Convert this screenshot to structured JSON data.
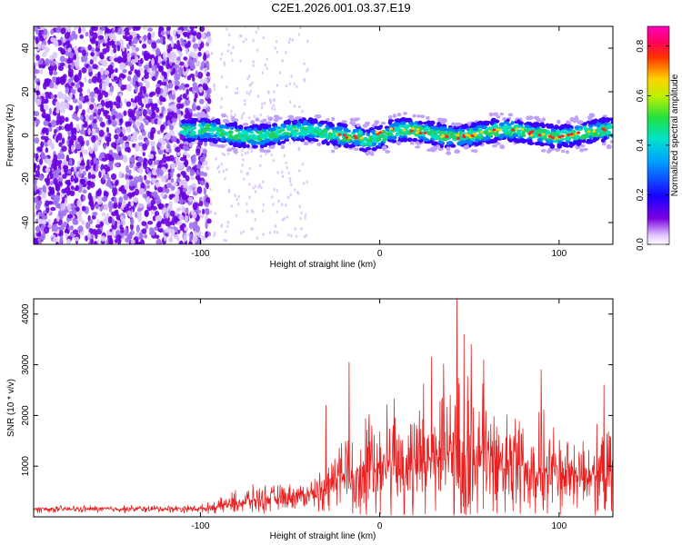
{
  "title": "C2E1.2026.001.03.37.E19",
  "chart_data": [
    {
      "type": "heatmap",
      "name": "spectrogram",
      "xlabel": "Height of straight line (km)",
      "ylabel": "Frequency (Hz)",
      "xlim": [
        -193,
        130
      ],
      "ylim": [
        -50,
        50
      ],
      "xticks": [
        -100,
        0,
        100
      ],
      "xtick_labels": [
        "-100",
        "0",
        "100"
      ],
      "yticks": [
        -40,
        -20,
        0,
        20,
        40
      ],
      "ytick_labels": [
        "-40",
        "-20",
        "0",
        "20",
        "40"
      ],
      "colorbar": {
        "label": "Normalized spectral amplitude",
        "range": [
          0,
          0.88
        ],
        "ticks": [
          0,
          0.2,
          0.4,
          0.6,
          0.8
        ],
        "tick_labels": [
          "0.0",
          "0.2",
          "0.4",
          "0.6",
          "0.8"
        ]
      },
      "features": {
        "noise_region_x": [
          -193,
          -95
        ],
        "sparse_noise_x": [
          -95,
          -40
        ],
        "signal_band_x": [
          -110,
          130
        ],
        "signal_band_center_hz": 1,
        "signal_band_halfwidth_hz": 5
      },
      "colors": {
        "background": "#ffffff",
        "noise": "#7a00e0",
        "band_edge": "#3a00ff",
        "band_core": "#00e0c0",
        "peak": "#ff2020"
      }
    },
    {
      "type": "line",
      "name": "snr",
      "xlabel": "Height of straight line (km)",
      "ylabel": "SNR (10 * v/v)",
      "xlim": [
        -193,
        130
      ],
      "ylim": [
        0,
        4300
      ],
      "xticks": [
        -100,
        0,
        100
      ],
      "xtick_labels": [
        "-100",
        "0",
        "100"
      ],
      "yticks": [
        1000,
        2000,
        3000,
        4000
      ],
      "ytick_labels": [
        "1000",
        "2000",
        "3000",
        "4000"
      ],
      "envelope": {
        "x": [
          -193,
          -100,
          -90,
          -80,
          -70,
          -60,
          -50,
          -40,
          -30,
          -25,
          -20,
          -10,
          0,
          10,
          20,
          30,
          40,
          50,
          60,
          70,
          80,
          90,
          100,
          110,
          120,
          130
        ],
        "base": [
          150,
          160,
          200,
          280,
          330,
          360,
          400,
          430,
          550,
          800,
          850,
          950,
          1000,
          1050,
          1100,
          1150,
          1200,
          1150,
          1100,
          1050,
          1000,
          950,
          900,
          850,
          850,
          850
        ],
        "amp": [
          80,
          90,
          160,
          300,
          330,
          320,
          300,
          320,
          600,
          900,
          1100,
          1200,
          1500,
          1600,
          1800,
          1900,
          2000,
          1900,
          1700,
          1500,
          1300,
          1200,
          1100,
          1000,
          1000,
          1000
        ]
      },
      "spikes": [
        [
          43,
          4300
        ],
        [
          -17,
          3050
        ],
        [
          47,
          3600
        ],
        [
          51,
          3400
        ],
        [
          29,
          3150
        ],
        [
          -30,
          2200
        ],
        [
          90,
          2900
        ],
        [
          58,
          3100
        ],
        [
          125,
          2600
        ]
      ],
      "color": "#e82020"
    }
  ]
}
